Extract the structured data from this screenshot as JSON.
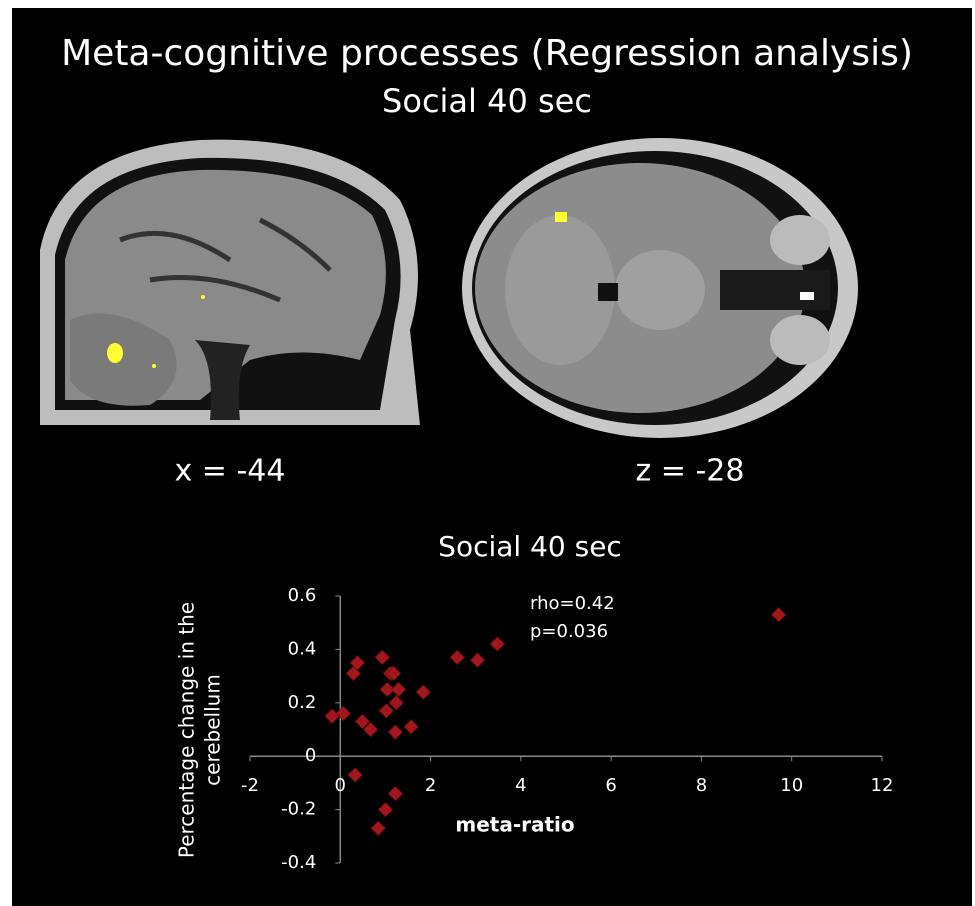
{
  "title": "Meta-cognitive processes (Regression analysis)",
  "subtitle": "Social 40 sec",
  "images": [
    {
      "label": "x = -44"
    },
    {
      "label": "z = -28"
    }
  ],
  "chart_data": {
    "type": "scatter",
    "title": "Social 40 sec",
    "xlabel": "meta-ratio",
    "ylabel": [
      "Percentage change in the",
      "cerebellum"
    ],
    "annotations": [
      "rho=0.42",
      "p=0.036"
    ],
    "color": "#a3161d",
    "xlim": [
      -2,
      12
    ],
    "xticks": [
      -2,
      0,
      2,
      4,
      6,
      8,
      10,
      12
    ],
    "ylim": [
      -0.4,
      0.6
    ],
    "yticks": [
      -0.4,
      -0.2,
      0,
      0.2,
      0.4,
      0.6
    ],
    "grid": false,
    "x": [
      -0.18,
      0.07,
      0.29,
      0.38,
      0.33,
      0.49,
      0.67,
      0.93,
      1.04,
      1.02,
      1.11,
      1.18,
      1.24,
      1.29,
      1.22,
      1.22,
      1.0,
      0.84,
      1.57,
      1.84,
      2.59,
      3.04,
      3.48,
      9.71
    ],
    "values": [
      0.15,
      0.16,
      0.31,
      0.35,
      -0.07,
      0.13,
      0.1,
      0.37,
      0.25,
      0.17,
      0.31,
      0.31,
      0.2,
      0.25,
      0.09,
      -0.14,
      -0.2,
      -0.27,
      0.11,
      0.24,
      0.37,
      0.36,
      0.42,
      0.53
    ]
  }
}
